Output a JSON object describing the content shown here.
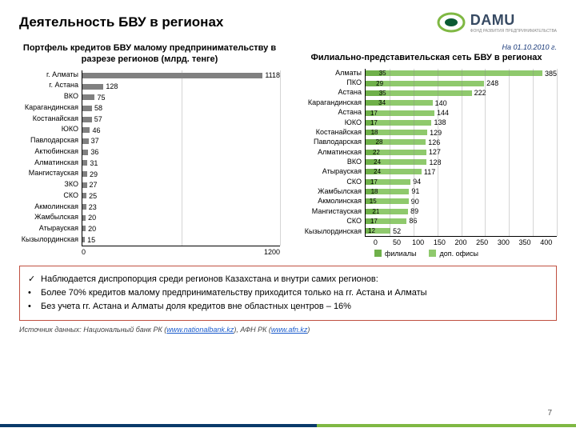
{
  "title": "Деятельность БВУ в регионах",
  "logo": {
    "text": "DAMU",
    "subtitle": "ФОНД РАЗВИТИЯ ПРЕДПРИНИМАТЕЛЬСТВА"
  },
  "date_note": "На 01.10.2010 г.",
  "chart1": {
    "type": "bar",
    "title": "Портфель кредитов БВУ малому предпринимательству в разрезе регионов (млрд. тенге)",
    "categories": [
      "г. Алматы",
      "г. Астана",
      "ВКО",
      "Карагандинская",
      "Костанайская",
      "ЮКО",
      "Павлодарская",
      "Актюбинская",
      "Алматинская",
      "Мангистауская",
      "ЗКО",
      "СКО",
      "Акмолинская",
      "Жамбылская",
      "Атырауская",
      "Кызылординская"
    ],
    "values": [
      1118,
      128,
      75,
      58,
      57,
      46,
      37,
      36,
      31,
      29,
      27,
      25,
      23,
      20,
      20,
      15
    ],
    "bar_color": "#808080",
    "value_fontsize": 9,
    "xlim": [
      0,
      1200
    ],
    "xtick_step": 600,
    "grid_color": "#888888",
    "background_color": "#ffffff"
  },
  "chart2": {
    "type": "stacked-bar",
    "title": "Филиально-представительская сеть БВУ в регионах",
    "categories": [
      "Алматы",
      "ПКО",
      "Астана",
      "Карагандинская",
      "Астана",
      "ЮКО",
      "Костанайская",
      "Павлодарская",
      "Алматинская",
      "ВКО",
      "Атырауская",
      "СКО",
      "Жамбылская",
      "Акмолинская",
      "Мангистауская",
      "СКО",
      "Кызылординская"
    ],
    "series": [
      {
        "name": "филиалы",
        "values": [
          35,
          29,
          35,
          34,
          17,
          17,
          18,
          28,
          22,
          24,
          24,
          17,
          18,
          15,
          21,
          17,
          12
        ],
        "color": "#6fb04a"
      },
      {
        "name": "доп. офисы",
        "values": [
          350,
          219,
          187,
          106,
          127,
          121,
          111,
          98,
          105,
          104,
          93,
          77,
          73,
          75,
          68,
          69,
          40
        ],
        "color": "#8fc96d"
      }
    ],
    "xlim": [
      0,
      400
    ],
    "xtick_step": 50,
    "label_fontsize": 9,
    "grid_color": "#888888"
  },
  "legend": {
    "item1": "филиалы",
    "item2": "доп. офисы"
  },
  "bullets": {
    "b0_mark": "✓",
    "b0": "Наблюдается диспропорция среди регионов Казахстана и внутри самих регионов:",
    "b1_mark": "•",
    "b1": "Более 70% кредитов малому предпринимательству приходится только на гг. Астана и Алматы",
    "b2_mark": "•",
    "b2": "Без учета гг. Астана и Алматы доля кредитов вне областных центров – 16%"
  },
  "source": {
    "prefix": "Источник данных: Национальный банк РК (",
    "link1": "www.nationalbank.kz",
    "mid": "), АФН РК (",
    "link2": "www.afn.kz",
    "suffix": ")"
  },
  "page_number": "7"
}
